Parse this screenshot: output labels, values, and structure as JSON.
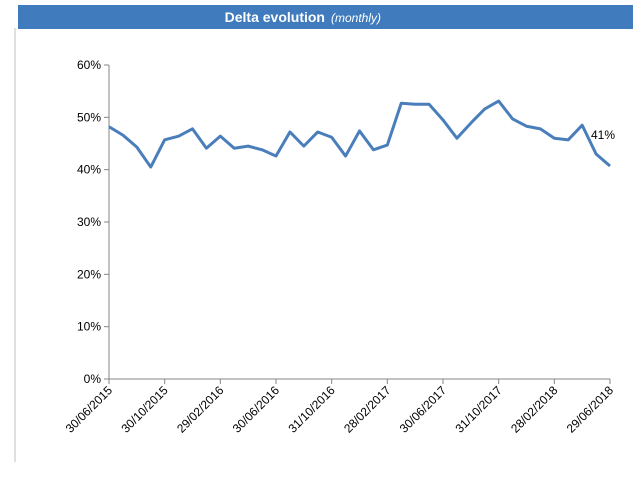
{
  "chart_data": {
    "type": "line",
    "title": "Delta evolution",
    "subtitle": "(monthly)",
    "categories": [
      "30/06/2015",
      null,
      null,
      null,
      "30/10/2015",
      null,
      null,
      null,
      "29/02/2016",
      null,
      null,
      null,
      "30/06/2016",
      null,
      null,
      null,
      "31/10/2016",
      null,
      null,
      null,
      "28/02/2017",
      null,
      null,
      null,
      "30/06/2017",
      null,
      null,
      null,
      "31/10/2017",
      null,
      null,
      null,
      "28/02/2018",
      null,
      null,
      null,
      "29/06/2018"
    ],
    "series": [
      {
        "name": "Delta",
        "color": "#4a7ebb",
        "values": [
          48.2,
          46.6,
          44.3,
          40.5,
          45.7,
          46.4,
          47.8,
          44.1,
          46.4,
          44.1,
          44.5,
          43.8,
          42.6,
          47.2,
          44.5,
          47.2,
          46.2,
          42.6,
          47.4,
          43.8,
          44.7,
          52.7,
          52.5,
          52.5,
          49.5,
          46.0,
          48.9,
          51.6,
          53.1,
          49.7,
          48.3,
          47.8,
          46.0,
          45.7,
          48.5,
          43.0,
          40.7
        ],
        "value_labels": [
          null,
          null,
          null,
          null,
          null,
          null,
          null,
          null,
          null,
          null,
          null,
          null,
          null,
          null,
          null,
          null,
          null,
          null,
          null,
          null,
          null,
          null,
          null,
          null,
          null,
          null,
          null,
          null,
          null,
          null,
          null,
          null,
          null,
          null,
          null,
          null,
          "41%"
        ]
      }
    ],
    "ylim": [
      0,
      60
    ],
    "yticks": [
      {
        "value": 0,
        "label": "0%"
      },
      {
        "value": 10,
        "label": "10%"
      },
      {
        "value": 20,
        "label": "20%"
      },
      {
        "value": 30,
        "label": "30%"
      },
      {
        "value": 40,
        "label": "40%"
      },
      {
        "value": 50,
        "label": "50%"
      },
      {
        "value": 60,
        "label": "60%"
      }
    ],
    "grid": false
  }
}
